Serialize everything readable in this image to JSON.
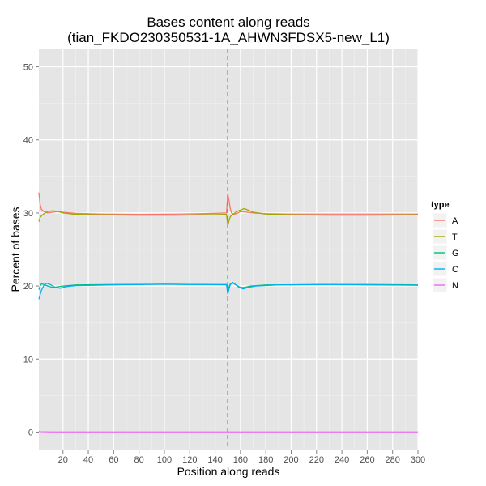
{
  "chart_data": {
    "type": "line",
    "title": "Bases content along reads",
    "subtitle": "(tian_FKDO230350531-1A_AHWN3FDSX5-new_L1)",
    "xlabel": "Position along reads",
    "ylabel": "Percent of bases",
    "xlim": [
      1,
      300
    ],
    "ylim": [
      -2.5,
      52.5
    ],
    "xticks": [
      20,
      40,
      60,
      80,
      100,
      120,
      140,
      160,
      180,
      200,
      220,
      240,
      260,
      280,
      300
    ],
    "yticks": [
      0,
      10,
      20,
      30,
      40,
      50
    ],
    "grid": true,
    "legend": {
      "title": "type",
      "position": "right"
    },
    "vline": {
      "x": 150,
      "color": "#3a87c8",
      "style": "dashed"
    },
    "series": [
      {
        "name": "A",
        "color": "#F8766D",
        "points": [
          [
            1,
            32.8
          ],
          [
            2,
            31.2
          ],
          [
            3,
            30.5
          ],
          [
            5,
            30.2
          ],
          [
            8,
            30.0
          ],
          [
            12,
            30.1
          ],
          [
            16,
            30.2
          ],
          [
            20,
            30.1
          ],
          [
            30,
            29.95
          ],
          [
            50,
            29.85
          ],
          [
            80,
            29.8
          ],
          [
            110,
            29.85
          ],
          [
            130,
            29.9
          ],
          [
            149,
            30.0
          ],
          [
            150,
            32.6
          ],
          [
            151,
            31.7
          ],
          [
            152,
            30.6
          ],
          [
            153,
            30.0
          ],
          [
            155,
            29.8
          ],
          [
            158,
            30.0
          ],
          [
            160,
            30.2
          ],
          [
            165,
            30.1
          ],
          [
            170,
            30.0
          ],
          [
            180,
            29.9
          ],
          [
            200,
            29.85
          ],
          [
            230,
            29.85
          ],
          [
            260,
            29.85
          ],
          [
            300,
            29.85
          ]
        ]
      },
      {
        "name": "T",
        "color": "#A3A500",
        "points": [
          [
            1,
            28.8
          ],
          [
            2,
            29.4
          ],
          [
            3,
            29.6
          ],
          [
            5,
            29.9
          ],
          [
            8,
            30.2
          ],
          [
            12,
            30.3
          ],
          [
            16,
            30.2
          ],
          [
            20,
            30.0
          ],
          [
            30,
            29.8
          ],
          [
            50,
            29.75
          ],
          [
            80,
            29.7
          ],
          [
            110,
            29.7
          ],
          [
            130,
            29.75
          ],
          [
            149,
            29.8
          ],
          [
            150,
            28.3
          ],
          [
            151,
            29.0
          ],
          [
            152,
            29.5
          ],
          [
            154,
            29.8
          ],
          [
            157,
            30.2
          ],
          [
            160,
            30.4
          ],
          [
            163,
            30.6
          ],
          [
            166,
            30.4
          ],
          [
            170,
            30.1
          ],
          [
            180,
            29.85
          ],
          [
            200,
            29.75
          ],
          [
            230,
            29.7
          ],
          [
            260,
            29.7
          ],
          [
            300,
            29.75
          ]
        ]
      },
      {
        "name": "G",
        "color": "#00BF7D",
        "points": [
          [
            1,
            19.5
          ],
          [
            2,
            20.0
          ],
          [
            3,
            20.3
          ],
          [
            5,
            20.2
          ],
          [
            8,
            20.0
          ],
          [
            12,
            19.8
          ],
          [
            16,
            19.9
          ],
          [
            20,
            20.0
          ],
          [
            30,
            20.15
          ],
          [
            60,
            20.2
          ],
          [
            100,
            20.25
          ],
          [
            130,
            20.2
          ],
          [
            149,
            20.2
          ],
          [
            150,
            19.6
          ],
          [
            151,
            19.9
          ],
          [
            152,
            20.3
          ],
          [
            154,
            20.4
          ],
          [
            157,
            20.1
          ],
          [
            160,
            19.8
          ],
          [
            163,
            19.8
          ],
          [
            168,
            20.0
          ],
          [
            180,
            20.15
          ],
          [
            220,
            20.2
          ],
          [
            260,
            20.2
          ],
          [
            300,
            20.15
          ]
        ]
      },
      {
        "name": "C",
        "color": "#00B0F6",
        "points": [
          [
            1,
            18.2
          ],
          [
            2,
            18.8
          ],
          [
            3,
            19.4
          ],
          [
            5,
            20.1
          ],
          [
            7,
            20.4
          ],
          [
            10,
            20.2
          ],
          [
            14,
            19.8
          ],
          [
            18,
            19.7
          ],
          [
            22,
            19.9
          ],
          [
            30,
            20.05
          ],
          [
            60,
            20.15
          ],
          [
            100,
            20.25
          ],
          [
            130,
            20.2
          ],
          [
            149,
            20.15
          ],
          [
            150,
            18.9
          ],
          [
            151,
            19.6
          ],
          [
            152,
            20.2
          ],
          [
            154,
            20.5
          ],
          [
            156,
            20.2
          ],
          [
            159,
            19.8
          ],
          [
            162,
            19.6
          ],
          [
            166,
            19.8
          ],
          [
            172,
            20.0
          ],
          [
            190,
            20.15
          ],
          [
            230,
            20.2
          ],
          [
            260,
            20.15
          ],
          [
            300,
            20.1
          ]
        ]
      },
      {
        "name": "N",
        "color": "#E76BF3",
        "points": [
          [
            1,
            0.1
          ],
          [
            2,
            0.05
          ],
          [
            10,
            0.02
          ],
          [
            150,
            0.02
          ],
          [
            300,
            0.02
          ]
        ]
      }
    ]
  }
}
